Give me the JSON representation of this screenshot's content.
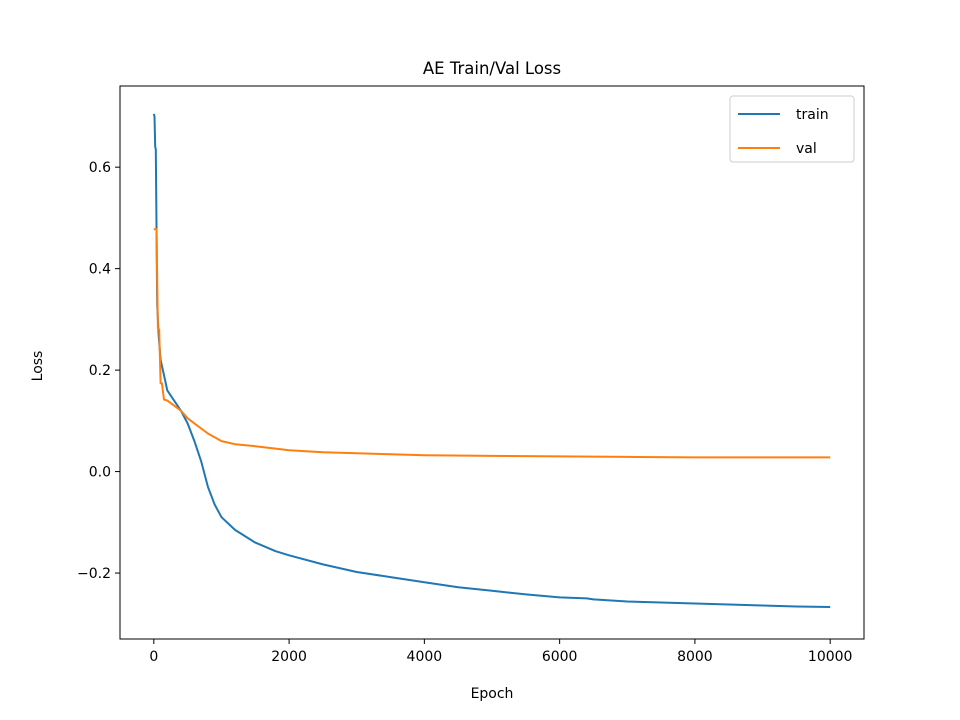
{
  "chart_data": {
    "type": "line",
    "title": "AE Train/Val Loss",
    "xlabel": "Epoch",
    "ylabel": "Loss",
    "xlim": [
      -500,
      10500
    ],
    "ylim": [
      -0.33,
      0.76
    ],
    "xticks": [
      {
        "value": 0,
        "label": "0"
      },
      {
        "value": 2000,
        "label": "2000"
      },
      {
        "value": 4000,
        "label": "4000"
      },
      {
        "value": 6000,
        "label": "6000"
      },
      {
        "value": 8000,
        "label": "8000"
      },
      {
        "value": 10000,
        "label": "10000"
      }
    ],
    "yticks": [
      {
        "value": -0.2,
        "label": "−0.2"
      },
      {
        "value": 0.0,
        "label": "0.0"
      },
      {
        "value": 0.2,
        "label": "0.2"
      },
      {
        "value": 0.4,
        "label": "0.4"
      },
      {
        "value": 0.6,
        "label": "0.6"
      }
    ],
    "grid": false,
    "legend_position": "upper-right",
    "series": [
      {
        "name": "train",
        "color": "#1f77b4",
        "x": [
          0,
          10,
          20,
          30,
          50,
          70,
          100,
          150,
          200,
          300,
          400,
          500,
          600,
          700,
          800,
          900,
          1000,
          1200,
          1500,
          1800,
          2000,
          2500,
          3000,
          3500,
          4000,
          4500,
          5000,
          5500,
          6000,
          6400,
          6500,
          7000,
          7500,
          8000,
          8500,
          9000,
          9500,
          10000
        ],
        "y": [
          0.705,
          0.7,
          0.64,
          0.635,
          0.33,
          0.27,
          0.22,
          0.19,
          0.16,
          0.14,
          0.12,
          0.095,
          0.06,
          0.02,
          -0.03,
          -0.065,
          -0.09,
          -0.115,
          -0.14,
          -0.157,
          -0.165,
          -0.183,
          -0.198,
          -0.208,
          -0.218,
          -0.228,
          -0.235,
          -0.242,
          -0.248,
          -0.25,
          -0.252,
          -0.256,
          -0.258,
          -0.26,
          -0.262,
          -0.264,
          -0.266,
          -0.267
        ]
      },
      {
        "name": "val",
        "color": "#ff7f0e",
        "x": [
          0,
          20,
          40,
          60,
          80,
          100,
          120,
          150,
          200,
          300,
          400,
          500,
          600,
          700,
          800,
          1000,
          1200,
          1500,
          2000,
          2500,
          3000,
          3500,
          4000,
          5000,
          6000,
          7000,
          8000,
          9000,
          10000
        ],
        "y": [
          0.477,
          0.478,
          0.478,
          0.282,
          0.28,
          0.174,
          0.174,
          0.142,
          0.14,
          0.13,
          0.12,
          0.105,
          0.095,
          0.085,
          0.075,
          0.06,
          0.054,
          0.05,
          0.042,
          0.038,
          0.036,
          0.034,
          0.032,
          0.031,
          0.03,
          0.029,
          0.028,
          0.028,
          0.028
        ]
      }
    ]
  }
}
